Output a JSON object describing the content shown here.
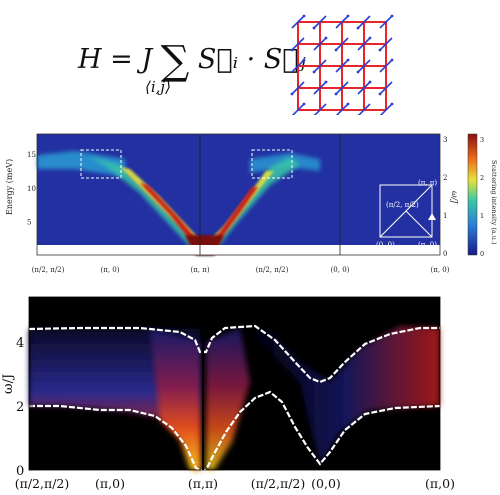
{
  "equation": {
    "lhs": "H = J",
    "sum": "∑",
    "sum_sub": "⟨i,j⟩",
    "rhs": "S⃗ᵢ · S⃗ⱼ"
  },
  "lattice": {
    "line_color": "#e8262a",
    "spin_color": "#2b3fd1",
    "rows": 5,
    "cols": 5
  },
  "top_panel": {
    "ylabel": "Energy (meV)",
    "yticks": [
      "5",
      "10",
      "15"
    ],
    "right_ylabel": "ω/J",
    "right_yticks": [
      "0",
      "1",
      "2",
      "3"
    ],
    "xticks": [
      "(π/2, π/2)",
      "(π, 0)",
      "(π, π)",
      "(π/2, π/2)",
      "(0, 0)",
      "(π, 0)"
    ],
    "colorbar_label": "Scattering intensity (a.u.)",
    "colorbar_ticks": [
      "0",
      "1",
      "2",
      "3"
    ],
    "bz_labels": [
      "(π, π)",
      "(π/2, π/2)",
      "(0, 0)",
      "(π, 0)"
    ]
  },
  "bottom_panel": {
    "ylabel": "ω/J",
    "yticks": [
      "0",
      "2",
      "4"
    ],
    "xticks": [
      "(π/2,π/2)",
      "(π,0)",
      "(π,π)",
      "(π/2,π/2)",
      "(0,0)",
      "(π,0)"
    ]
  }
}
